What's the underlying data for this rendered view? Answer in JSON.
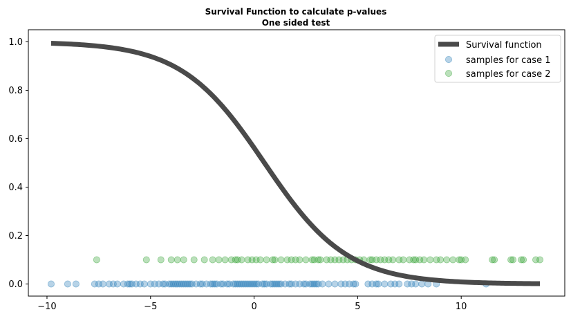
{
  "chart_data": {
    "type": "scatter",
    "title": "Survival Function to calculate p-values",
    "subtitle": "One sided test",
    "xlabel": "",
    "ylabel": "",
    "xlim": [
      -10.9,
      15.0
    ],
    "ylim": [
      -0.05,
      1.05
    ],
    "xticks": [
      -10,
      -5,
      0,
      5,
      10
    ],
    "yticks": [
      0.0,
      0.2,
      0.4,
      0.6,
      0.8,
      1.0
    ],
    "xtick_labels": [
      "−10",
      "−5",
      "0",
      "5",
      "10"
    ],
    "ytick_labels": [
      "0.0",
      "0.2",
      "0.4",
      "0.6",
      "0.8",
      "1.0"
    ],
    "grid": false,
    "legend_position": "top-right",
    "line": {
      "name": "Survival function",
      "color": "#4a4a4a",
      "distribution": "logistic",
      "loc": 0.5,
      "scale": 2.0,
      "x_range": [
        -9.8,
        13.8
      ]
    },
    "series": [
      {
        "name": "samples for case 1",
        "color": "#1f77b4",
        "y": 0.0,
        "x": [
          -9.8,
          -9.0,
          -8.6,
          -7.7,
          -7.5,
          -7.3,
          -7.0,
          -6.8,
          -6.6,
          -6.3,
          -6.1,
          -6.0,
          -5.9,
          -5.7,
          -5.5,
          -5.3,
          -5.0,
          -4.8,
          -4.6,
          -4.4,
          -4.3,
          -4.1,
          -4.0,
          -3.9,
          -3.8,
          -3.7,
          -3.6,
          -3.5,
          -3.4,
          -3.3,
          -3.2,
          -3.1,
          -3.0,
          -2.8,
          -2.6,
          -2.5,
          -2.3,
          -2.1,
          -2.0,
          -1.9,
          -1.8,
          -1.6,
          -1.5,
          -1.3,
          -1.2,
          -1.0,
          -0.9,
          -0.8,
          -0.7,
          -0.6,
          -0.5,
          -0.4,
          -0.3,
          -0.2,
          -0.1,
          0.0,
          0.1,
          0.2,
          0.4,
          0.5,
          0.6,
          0.8,
          0.9,
          1.0,
          1.1,
          1.2,
          1.3,
          1.5,
          1.7,
          1.8,
          2.0,
          2.2,
          2.4,
          2.5,
          2.7,
          2.8,
          2.9,
          3.0,
          3.1,
          3.3,
          3.6,
          3.9,
          4.2,
          4.4,
          4.6,
          4.8,
          4.9,
          5.5,
          5.7,
          5.9,
          6.0,
          6.3,
          6.6,
          6.8,
          7.0,
          7.4,
          7.6,
          7.8,
          8.1,
          8.4,
          8.8,
          11.2
        ]
      },
      {
        "name": "samples for case 2",
        "color": "#2ca02c",
        "y": 0.1,
        "x": [
          -7.6,
          -5.2,
          -4.5,
          -4.0,
          -3.7,
          -3.4,
          -2.9,
          -2.4,
          -2.0,
          -1.7,
          -1.4,
          -1.1,
          -0.9,
          -0.8,
          -0.6,
          -0.3,
          -0.1,
          0.1,
          0.3,
          0.6,
          0.9,
          1.0,
          1.3,
          1.6,
          1.8,
          2.0,
          2.2,
          2.5,
          2.8,
          2.9,
          3.1,
          3.2,
          3.5,
          3.7,
          3.9,
          4.1,
          4.3,
          4.5,
          4.7,
          4.9,
          5.1,
          5.3,
          5.6,
          5.7,
          5.9,
          6.1,
          6.3,
          6.5,
          6.7,
          7.0,
          7.2,
          7.5,
          7.7,
          7.8,
          8.0,
          8.2,
          8.5,
          8.8,
          9.0,
          9.3,
          9.6,
          9.9,
          10.0,
          10.2,
          11.5,
          11.6,
          12.4,
          12.5,
          12.9,
          13.0,
          13.6,
          13.8
        ]
      }
    ]
  }
}
